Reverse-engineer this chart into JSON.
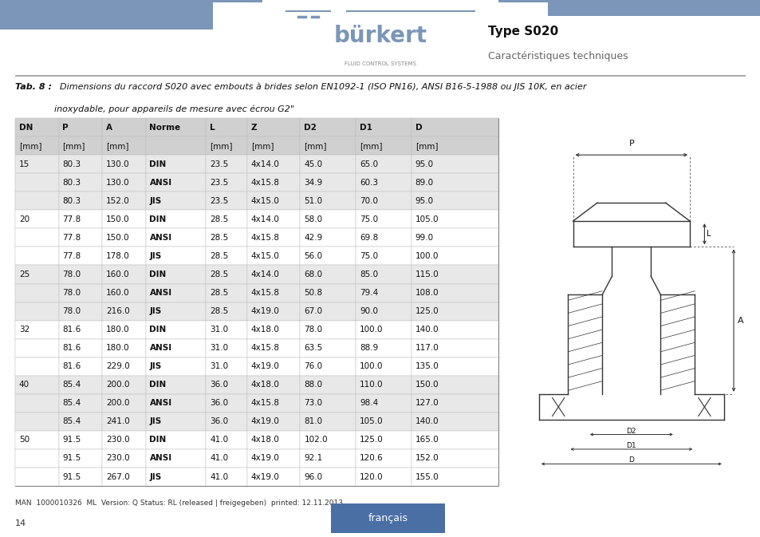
{
  "header_blue": "#7b96b8",
  "burkert_text": "bürkert",
  "fluid_text": "FLUID CONTROL SYSTEMS",
  "type_text": "Type S020",
  "caract_text": "Caractéristiques techniques",
  "tab_caption_bold": "Tab. 8 :",
  "tab_caption_text": "  Dimensions du raccord S020 avec embouts à brides selon EN1092-1 (ISO PN16), ANSI B16-5-1988 ou JIS 10K, en acier",
  "tab_caption_line2": "inoxydable, pour appareils de mesure avec écrou G2\"",
  "col_headers": [
    "DN",
    "P",
    "A",
    "Norme",
    "L",
    "Z",
    "D2",
    "D1",
    "D"
  ],
  "col_units": [
    "[mm]",
    "[mm]",
    "[mm]",
    "",
    "[mm]",
    "[mm]",
    "[mm]",
    "[mm]",
    "[mm]"
  ],
  "rows": [
    {
      "dn": "15",
      "p": "80.3",
      "a": "130.0",
      "norme": "DIN",
      "l": "23.5",
      "z": "4x14.0",
      "d2": "45.0",
      "d1": "65.0",
      "d": "95.0"
    },
    {
      "dn": "",
      "p": "80.3",
      "a": "130.0",
      "norme": "ANSI",
      "l": "23.5",
      "z": "4x15.8",
      "d2": "34.9",
      "d1": "60.3",
      "d": "89.0"
    },
    {
      "dn": "",
      "p": "80.3",
      "a": "152.0",
      "norme": "JIS",
      "l": "23.5",
      "z": "4x15.0",
      "d2": "51.0",
      "d1": "70.0",
      "d": "95.0"
    },
    {
      "dn": "20",
      "p": "77.8",
      "a": "150.0",
      "norme": "DIN",
      "l": "28.5",
      "z": "4x14.0",
      "d2": "58.0",
      "d1": "75.0",
      "d": "105.0"
    },
    {
      "dn": "",
      "p": "77.8",
      "a": "150.0",
      "norme": "ANSI",
      "l": "28.5",
      "z": "4x15.8",
      "d2": "42.9",
      "d1": "69.8",
      "d": "99.0"
    },
    {
      "dn": "",
      "p": "77.8",
      "a": "178.0",
      "norme": "JIS",
      "l": "28.5",
      "z": "4x15.0",
      "d2": "56.0",
      "d1": "75.0",
      "d": "100.0"
    },
    {
      "dn": "25",
      "p": "78.0",
      "a": "160.0",
      "norme": "DIN",
      "l": "28.5",
      "z": "4x14.0",
      "d2": "68.0",
      "d1": "85.0",
      "d": "115.0"
    },
    {
      "dn": "",
      "p": "78.0",
      "a": "160.0",
      "norme": "ANSI",
      "l": "28.5",
      "z": "4x15.8",
      "d2": "50.8",
      "d1": "79.4",
      "d": "108.0"
    },
    {
      "dn": "",
      "p": "78.0",
      "a": "216.0",
      "norme": "JIS",
      "l": "28.5",
      "z": "4x19.0",
      "d2": "67.0",
      "d1": "90.0",
      "d": "125.0"
    },
    {
      "dn": "32",
      "p": "81.6",
      "a": "180.0",
      "norme": "DIN",
      "l": "31.0",
      "z": "4x18.0",
      "d2": "78.0",
      "d1": "100.0",
      "d": "140.0"
    },
    {
      "dn": "",
      "p": "81.6",
      "a": "180.0",
      "norme": "ANSI",
      "l": "31.0",
      "z": "4x15.8",
      "d2": "63.5",
      "d1": "88.9",
      "d": "117.0"
    },
    {
      "dn": "",
      "p": "81.6",
      "a": "229.0",
      "norme": "JIS",
      "l": "31.0",
      "z": "4x19.0",
      "d2": "76.0",
      "d1": "100.0",
      "d": "135.0"
    },
    {
      "dn": "40",
      "p": "85.4",
      "a": "200.0",
      "norme": "DIN",
      "l": "36.0",
      "z": "4x18.0",
      "d2": "88.0",
      "d1": "110.0",
      "d": "150.0"
    },
    {
      "dn": "",
      "p": "85.4",
      "a": "200.0",
      "norme": "ANSI",
      "l": "36.0",
      "z": "4x15.8",
      "d2": "73.0",
      "d1": "98.4",
      "d": "127.0"
    },
    {
      "dn": "",
      "p": "85.4",
      "a": "241.0",
      "norme": "JIS",
      "l": "36.0",
      "z": "4x19.0",
      "d2": "81.0",
      "d1": "105.0",
      "d": "140.0"
    },
    {
      "dn": "50",
      "p": "91.5",
      "a": "230.0",
      "norme": "DIN",
      "l": "41.0",
      "z": "4x18.0",
      "d2": "102.0",
      "d1": "125.0",
      "d": "165.0"
    },
    {
      "dn": "",
      "p": "91.5",
      "a": "230.0",
      "norme": "ANSI",
      "l": "41.0",
      "z": "4x19.0",
      "d2": "92.1",
      "d1": "120.6",
      "d": "152.0"
    },
    {
      "dn": "",
      "p": "91.5",
      "a": "267.0",
      "norme": "JIS",
      "l": "41.0",
      "z": "4x19.0",
      "d2": "96.0",
      "d1": "120.0",
      "d": "155.0"
    }
  ],
  "footer_text": "MAN  1000010326  ML  Version: Q Status: RL (released | freigegeben)  printed: 12.11.2013",
  "page_number": "14",
  "lang_button_text": "français",
  "lang_button_color": "#4a6fa5",
  "bg_color": "#ffffff",
  "row_gray": "#e8e8e8",
  "row_white": "#ffffff",
  "header_row_color": "#d0d0d0"
}
